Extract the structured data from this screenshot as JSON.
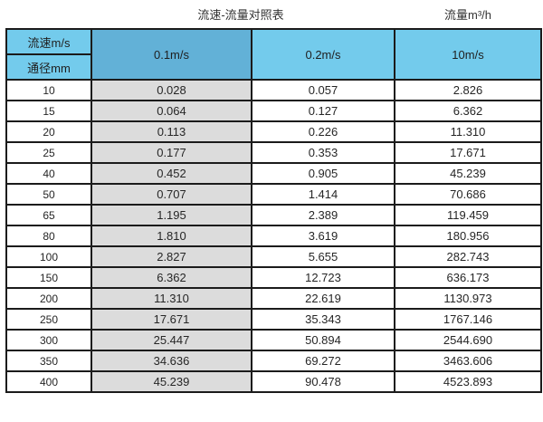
{
  "captions": {
    "title": "流速-流量对照表",
    "unit": "流量m³/h"
  },
  "table": {
    "corner": {
      "top": "流速m/s",
      "bottom": "通径mm"
    },
    "columns": [
      "0.1m/s",
      "0.2m/s",
      "10m/s"
    ],
    "rows": [
      {
        "dn": "10",
        "c1": "0.028",
        "c2": "0.057",
        "c3": "2.826"
      },
      {
        "dn": "15",
        "c1": "0.064",
        "c2": "0.127",
        "c3": "6.362"
      },
      {
        "dn": "20",
        "c1": "0.113",
        "c2": "0.226",
        "c3": "11.310"
      },
      {
        "dn": "25",
        "c1": "0.177",
        "c2": "0.353",
        "c3": "17.671"
      },
      {
        "dn": "40",
        "c1": "0.452",
        "c2": "0.905",
        "c3": "45.239"
      },
      {
        "dn": "50",
        "c1": "0.707",
        "c2": "1.414",
        "c3": "70.686"
      },
      {
        "dn": "65",
        "c1": "1.195",
        "c2": "2.389",
        "c3": "119.459"
      },
      {
        "dn": "80",
        "c1": "1.810",
        "c2": "3.619",
        "c3": "180.956"
      },
      {
        "dn": "100",
        "c1": "2.827",
        "c2": "5.655",
        "c3": "282.743"
      },
      {
        "dn": "150",
        "c1": "6.362",
        "c2": "12.723",
        "c3": "636.173"
      },
      {
        "dn": "200",
        "c1": "11.310",
        "c2": "22.619",
        "c3": "1130.973"
      },
      {
        "dn": "250",
        "c1": "17.671",
        "c2": "35.343",
        "c3": "1767.146"
      },
      {
        "dn": "300",
        "c1": "25.447",
        "c2": "50.894",
        "c3": "2544.690"
      },
      {
        "dn": "350",
        "c1": "34.636",
        "c2": "69.272",
        "c3": "3463.606"
      },
      {
        "dn": "400",
        "c1": "45.239",
        "c2": "90.478",
        "c3": "4523.893"
      }
    ]
  },
  "colors": {
    "header_blue": "#73cbec",
    "highlight_blue": "#62b1d7",
    "column_gray": "#dcdcdc",
    "border": "#1b1b1b"
  },
  "chart_data": {
    "type": "table",
    "title": "流速-流量对照表",
    "right_caption": "流量m³/h",
    "row_header": "通径mm",
    "column_header": "流速m/s",
    "columns": [
      "0.1m/s",
      "0.2m/s",
      "10m/s"
    ],
    "diameters_mm": [
      10,
      15,
      20,
      25,
      40,
      50,
      65,
      80,
      100,
      150,
      200,
      250,
      300,
      350,
      400
    ],
    "series": [
      {
        "name": "0.1m/s",
        "values": [
          0.028,
          0.064,
          0.113,
          0.177,
          0.452,
          0.707,
          1.195,
          1.81,
          2.827,
          6.362,
          11.31,
          17.671,
          25.447,
          34.636,
          45.239
        ]
      },
      {
        "name": "0.2m/s",
        "values": [
          0.057,
          0.127,
          0.226,
          0.353,
          0.905,
          1.414,
          2.389,
          3.619,
          5.655,
          12.723,
          22.619,
          35.343,
          50.894,
          69.272,
          90.478
        ]
      },
      {
        "name": "10m/s",
        "values": [
          2.826,
          6.362,
          11.31,
          17.671,
          45.239,
          70.686,
          119.459,
          180.956,
          282.743,
          636.173,
          1130.973,
          1767.146,
          2544.69,
          3463.606,
          4523.893
        ]
      }
    ]
  }
}
